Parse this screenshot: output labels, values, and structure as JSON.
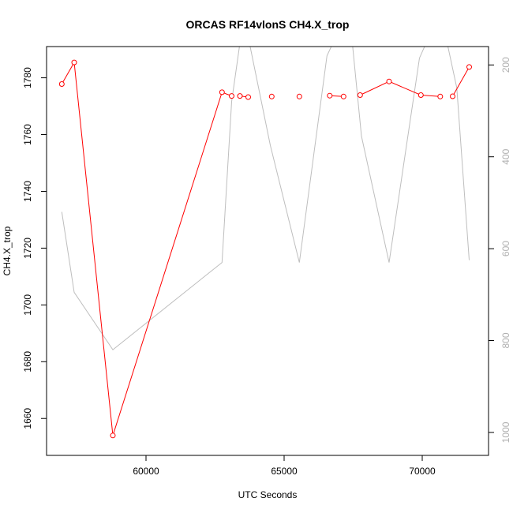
{
  "chart_data": {
    "type": "line",
    "title": "ORCAS RF14vlonS CH4.X_trop",
    "xlabel": "UTC Seconds",
    "ylabel": "CH4.X_trop",
    "xlim": [
      56400,
      72400
    ],
    "ylim": [
      1647,
      1791
    ],
    "y2lim": [
      1050,
      160
    ],
    "y2_reversed": true,
    "x_ticks": [
      60000,
      65000,
      70000
    ],
    "y_ticks": [
      1660,
      1680,
      1700,
      1720,
      1740,
      1760,
      1780
    ],
    "y2_ticks": [
      200,
      400,
      600,
      800,
      1000
    ],
    "x_tick_labels": [
      "60000",
      "65000",
      "70000"
    ],
    "y_tick_labels": [
      "1660",
      "1680",
      "1700",
      "1720",
      "1740",
      "1760",
      "1780"
    ],
    "y2_tick_labels": [
      "200",
      "400",
      "600",
      "800",
      "1000"
    ],
    "series": [
      {
        "axis": "left",
        "color": "#ff0000",
        "marker": "open-circle",
        "line_segments": [
          [
            [
              56950,
              1777.8
            ],
            [
              57400,
              1785.4
            ],
            [
              58800,
              1654.0
            ],
            [
              62750,
              1774.9
            ],
            [
              63100,
              1773.6
            ]
          ],
          [
            [
              63400,
              1773.6
            ],
            [
              63700,
              1773.2
            ]
          ],
          [
            [
              64550,
              1773.4
            ]
          ],
          [
            [
              65550,
              1773.4
            ]
          ],
          [
            [
              66650,
              1773.7
            ],
            [
              67150,
              1773.4
            ]
          ],
          [
            [
              67750,
              1773.9
            ],
            [
              68800,
              1778.7
            ],
            [
              69950,
              1773.9
            ],
            [
              70650,
              1773.4
            ]
          ],
          [
            [
              71100,
              1773.5
            ],
            [
              71700,
              1783.8
            ]
          ]
        ],
        "points": [
          [
            56950,
            1777.8
          ],
          [
            57400,
            1785.4
          ],
          [
            58800,
            1654.0
          ],
          [
            62750,
            1774.9
          ],
          [
            63100,
            1773.6
          ],
          [
            63400,
            1773.6
          ],
          [
            63700,
            1773.2
          ],
          [
            64550,
            1773.4
          ],
          [
            65550,
            1773.4
          ],
          [
            66650,
            1773.7
          ],
          [
            67150,
            1773.4
          ],
          [
            67750,
            1773.9
          ],
          [
            68800,
            1778.7
          ],
          [
            69950,
            1773.9
          ],
          [
            70650,
            1773.4
          ],
          [
            71100,
            1773.5
          ],
          [
            71700,
            1783.8
          ]
        ]
      },
      {
        "axis": "right",
        "color": "#bebebe",
        "x": [
          56950,
          57400,
          58800,
          62750,
          63100,
          63500,
          63600,
          64500,
          65550,
          66550,
          67100,
          67400,
          67800,
          68800,
          69900,
          70450,
          70750,
          71250,
          71700
        ],
        "y": [
          520,
          695,
          820,
          630,
          280,
          110,
          110,
          375,
          630,
          180,
          110,
          110,
          355,
          630,
          185,
          110,
          110,
          250,
          625
        ]
      }
    ]
  }
}
